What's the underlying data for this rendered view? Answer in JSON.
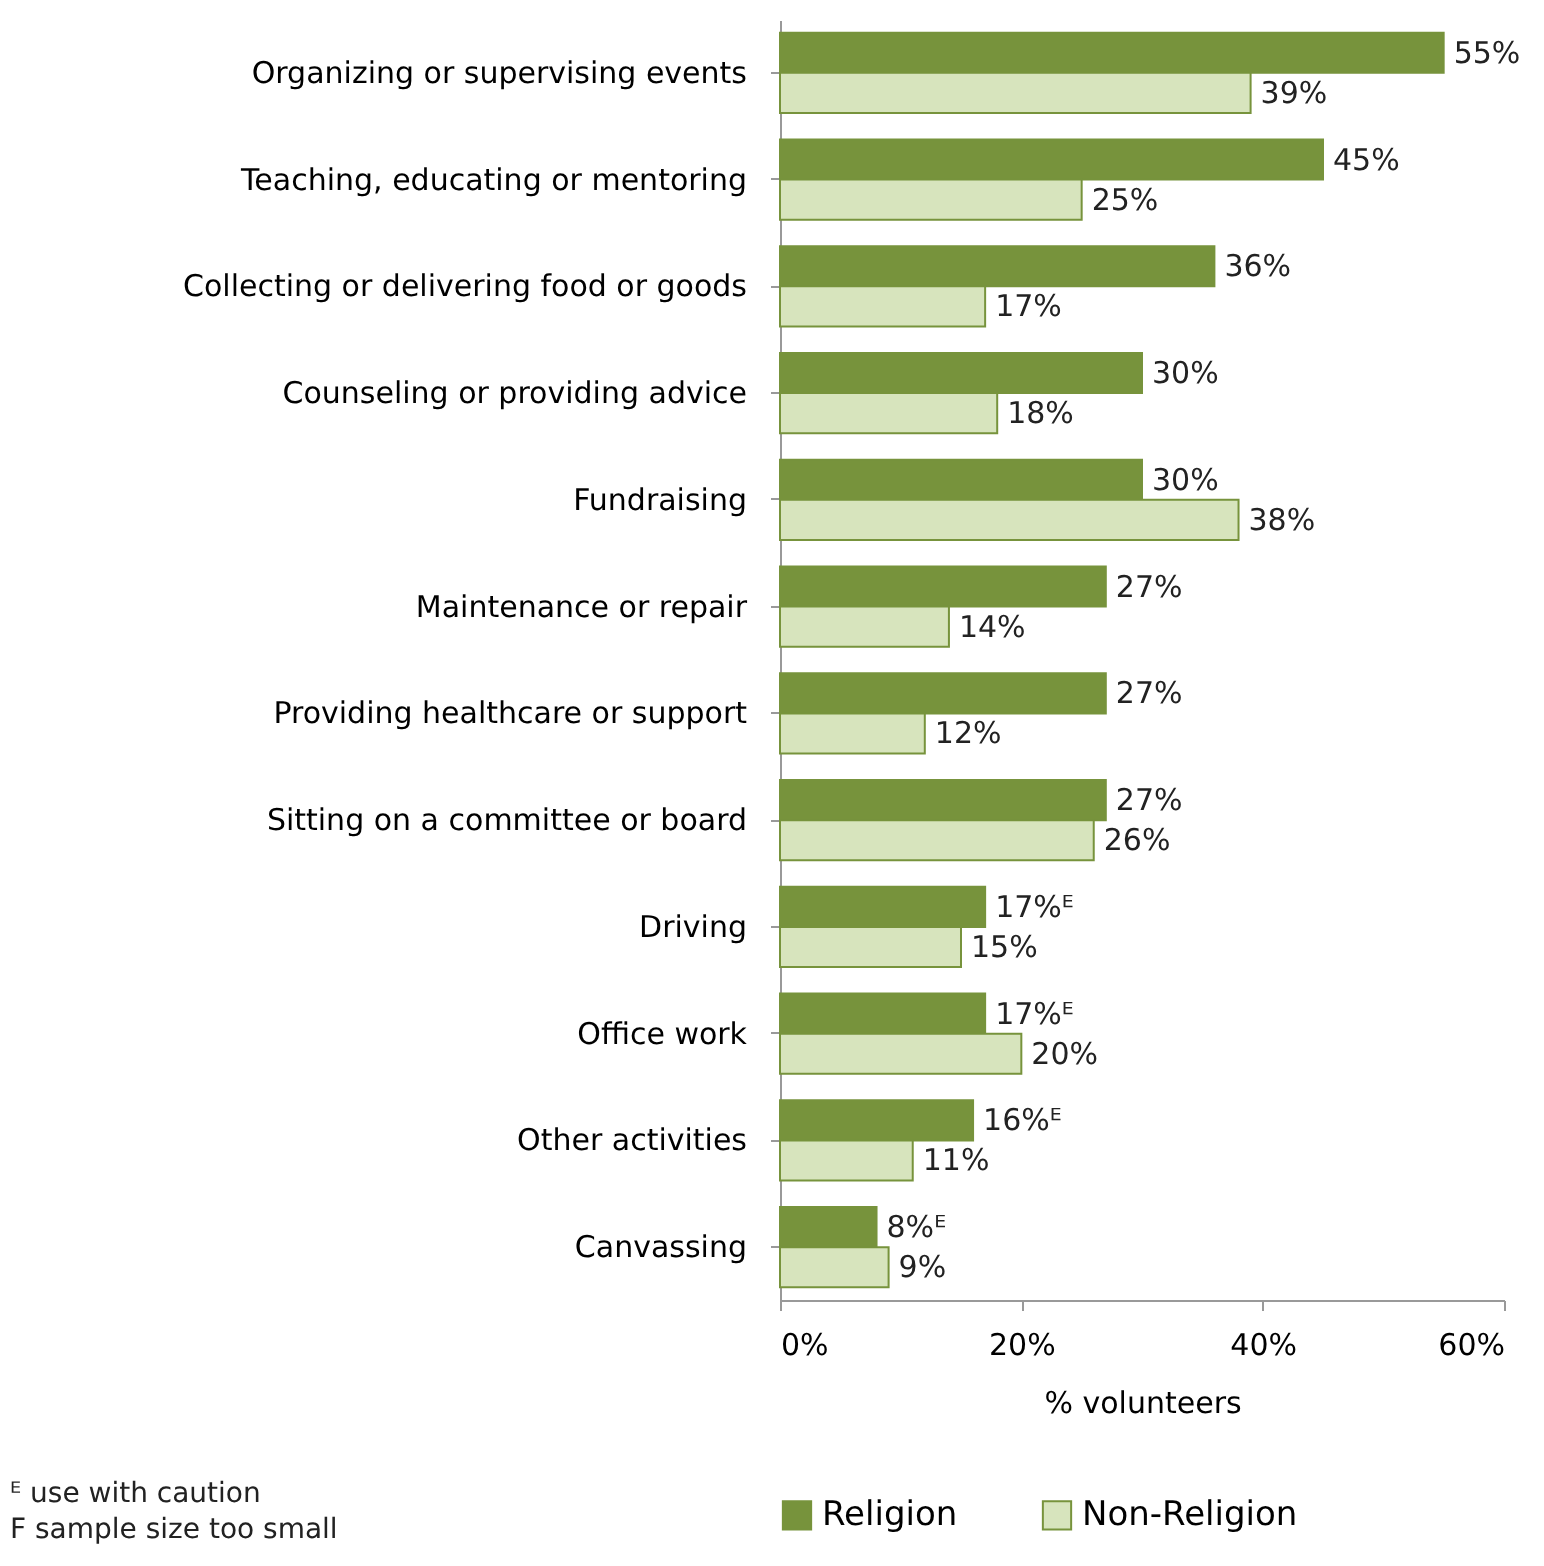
{
  "chart_data": {
    "type": "bar",
    "orientation": "horizontal",
    "xlabel": "% volunteers",
    "categories": [
      "Organizing or supervising events",
      "Teaching, educating or mentoring",
      "Collecting or delivering food or goods",
      "Counseling or providing advice",
      "Fundraising",
      "Maintenance or repair",
      "Providing healthcare or support",
      "Sitting on a committee or board",
      "Driving",
      "Office work",
      "Other activities",
      "Canvassing"
    ],
    "series": [
      {
        "name": "Religion",
        "color": "#77933c",
        "values": [
          55,
          45,
          36,
          30,
          30,
          27,
          27,
          27,
          17,
          17,
          16,
          8
        ],
        "value_labels": [
          "55%",
          "45%",
          "36%",
          "30%",
          "30%",
          "27%",
          "27%",
          "27%",
          "17%ᴱ",
          "17%ᴱ",
          "16%ᴱ",
          "8%ᴱ"
        ]
      },
      {
        "name": "Non-Religion",
        "color": "#d7e4bd",
        "values": [
          39,
          25,
          17,
          18,
          38,
          14,
          12,
          26,
          15,
          20,
          11,
          9
        ],
        "value_labels": [
          "39%",
          "25%",
          "17%",
          "18%",
          "38%",
          "14%",
          "12%",
          "26%",
          "15%",
          "20%",
          "11%",
          "9%"
        ]
      }
    ],
    "xlim": [
      0,
      60
    ],
    "xticks": [
      {
        "value": 0,
        "label": "0%"
      },
      {
        "value": 20,
        "label": "20%"
      },
      {
        "value": 40,
        "label": "40%"
      },
      {
        "value": 60,
        "label": "60%"
      }
    ],
    "grid": false,
    "legend": "bottom",
    "annotations": [
      "ᴱ use with caution",
      "F sample size too small"
    ]
  }
}
